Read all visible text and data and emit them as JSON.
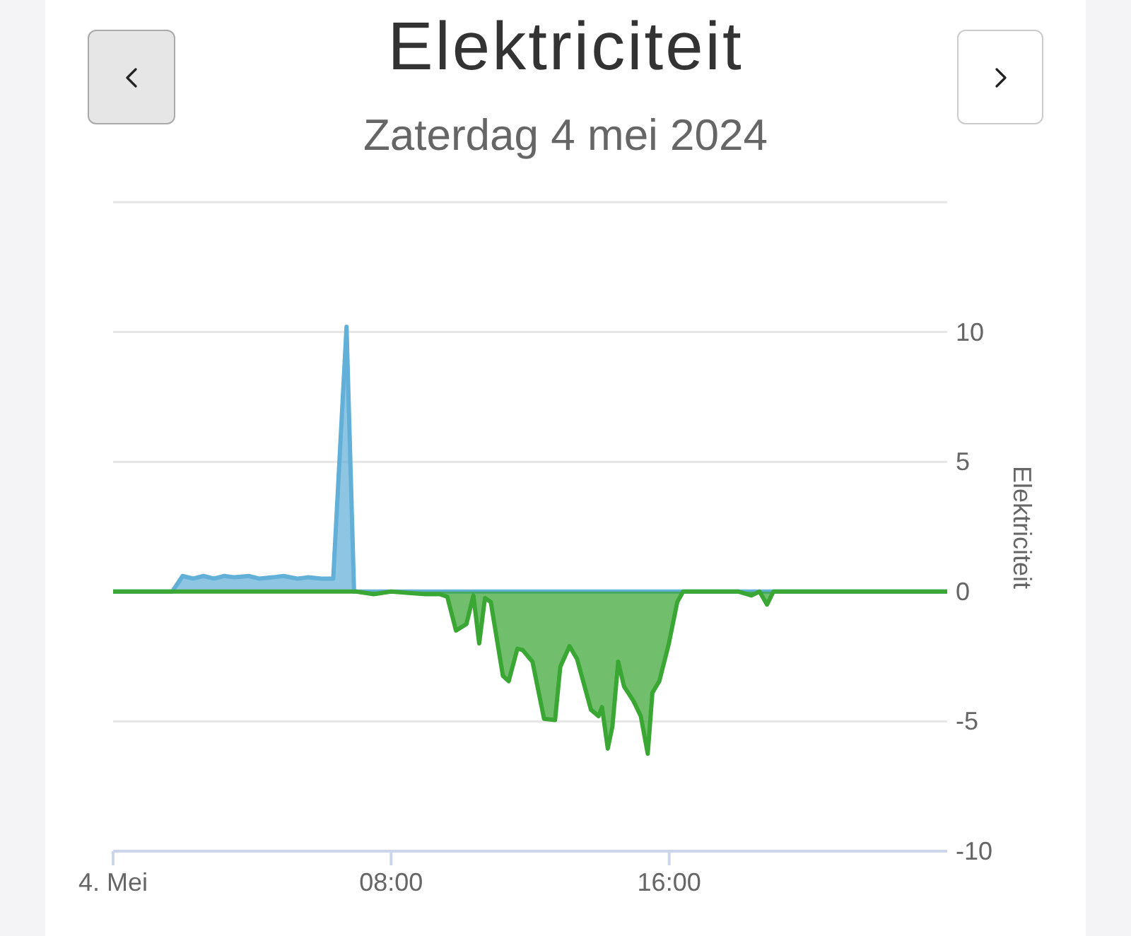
{
  "chart_data": {
    "type": "area",
    "title": "Elektriciteit",
    "subtitle": "Zaterdag 4 mei 2024",
    "ylabel": "Elektriciteit",
    "xlim": [
      "2024-05-04T00:00",
      "2024-05-05T00:00"
    ],
    "xticks": [
      {
        "value": "2024-05-04T00:00",
        "label": "4. Mei"
      },
      {
        "value": "2024-05-04T08:00",
        "label": "08:00"
      },
      {
        "value": "2024-05-04T16:00",
        "label": "16:00"
      }
    ],
    "ylim": [
      -10,
      15
    ],
    "yticks": [
      -10,
      -5,
      0,
      5,
      10,
      {
        "value": 15,
        "label": null
      }
    ],
    "grid": "y",
    "series": [
      {
        "color": "#62afd8",
        "x": [
          "2024-05-04T00:00",
          "2024-05-04T01:00",
          "2024-05-04T01:42",
          "2024-05-04T02:00",
          "2024-05-04T02:18",
          "2024-05-04T02:36",
          "2024-05-04T02:54",
          "2024-05-04T03:12",
          "2024-05-04T03:30",
          "2024-05-04T03:54",
          "2024-05-04T04:12",
          "2024-05-04T04:36",
          "2024-05-04T04:54",
          "2024-05-04T05:18",
          "2024-05-04T05:36",
          "2024-05-04T06:00",
          "2024-05-04T06:20",
          "2024-05-04T06:43",
          "2024-05-04T06:56",
          "2024-05-04T08:00",
          "2024-05-04T12:00",
          "2024-05-04T16:00",
          "2024-05-04T20:00",
          "2024-05-05T00:00"
        ],
        "values": [
          0,
          0,
          0,
          0.6,
          0.5,
          0.6,
          0.5,
          0.6,
          0.55,
          0.6,
          0.5,
          0.55,
          0.6,
          0.5,
          0.55,
          0.5,
          0.5,
          10.2,
          0,
          0,
          0,
          0,
          0,
          0
        ]
      },
      {
        "color": "#3aa634",
        "x": [
          "2024-05-04T00:00",
          "2024-05-04T01:00",
          "2024-05-04T02:00",
          "2024-05-04T03:00",
          "2024-05-04T04:00",
          "2024-05-04T05:00",
          "2024-05-04T06:00",
          "2024-05-04T07:00",
          "2024-05-04T07:30",
          "2024-05-04T08:00",
          "2024-05-04T08:30",
          "2024-05-04T09:00",
          "2024-05-04T09:24",
          "2024-05-04T09:37",
          "2024-05-04T09:52",
          "2024-05-04T10:10",
          "2024-05-04T10:22",
          "2024-05-04T10:32",
          "2024-05-04T10:42",
          "2024-05-04T10:52",
          "2024-05-04T11:13",
          "2024-05-04T11:23",
          "2024-05-04T11:38",
          "2024-05-04T11:47",
          "2024-05-04T12:04",
          "2024-05-04T12:24",
          "2024-05-04T12:43",
          "2024-05-04T12:52",
          "2024-05-04T13:08",
          "2024-05-04T13:21",
          "2024-05-04T13:45",
          "2024-05-04T13:58",
          "2024-05-04T14:04",
          "2024-05-04T14:14",
          "2024-05-04T14:22",
          "2024-05-04T14:32",
          "2024-05-04T14:42",
          "2024-05-04T14:58",
          "2024-05-04T15:11",
          "2024-05-04T15:23",
          "2024-05-04T15:31",
          "2024-05-04T15:43",
          "2024-05-04T15:59",
          "2024-05-04T16:14",
          "2024-05-04T16:24",
          "2024-05-04T17:00",
          "2024-05-04T18:00",
          "2024-05-04T18:22",
          "2024-05-04T18:36",
          "2024-05-04T18:49",
          "2024-05-04T19:00",
          "2024-05-04T20:00",
          "2024-05-04T21:00",
          "2024-05-04T22:00",
          "2024-05-04T23:00",
          "2024-05-05T00:00"
        ],
        "values": [
          0,
          0,
          0,
          0,
          0,
          0,
          0,
          0,
          -0.1,
          0,
          -0.05,
          -0.1,
          -0.1,
          -0.2,
          -1.5,
          -1.25,
          -0.15,
          -2.0,
          -0.25,
          -0.4,
          -3.25,
          -3.45,
          -2.2,
          -2.25,
          -2.7,
          -4.9,
          -4.95,
          -2.9,
          -2.1,
          -2.6,
          -4.55,
          -4.8,
          -4.45,
          -6.05,
          -5.2,
          -2.7,
          -3.65,
          -4.2,
          -4.8,
          -6.25,
          -3.9,
          -3.45,
          -2.05,
          -0.4,
          0,
          0,
          0,
          -0.15,
          0,
          -0.5,
          0,
          0,
          0,
          0,
          0,
          0
        ]
      }
    ]
  }
}
